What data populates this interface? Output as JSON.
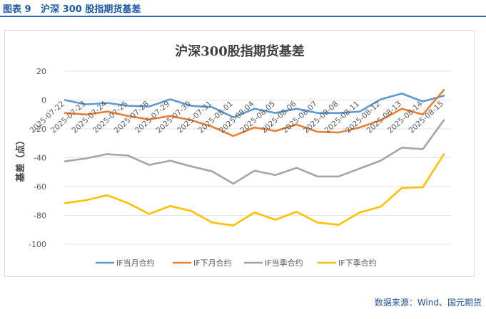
{
  "figure_label": "图表 9   沪深 300 股指期货基差",
  "source": "数据来源：Wind、国元期货",
  "chart_data": {
    "type": "line",
    "title": "沪深300股指期货基差",
    "ylabel": "基差（点）",
    "xlabel": "",
    "ylim": [
      -100,
      20
    ],
    "yticks": [
      20,
      0,
      -20,
      -40,
      -60,
      -80,
      -100
    ],
    "grid": true,
    "legend_position": "bottom",
    "x": [
      "2025-07-22",
      "2025-07-23",
      "2025-07-24",
      "2025-07-25",
      "2025-07-28",
      "2025-07-29",
      "2025-07-30",
      "2025-07-31",
      "2025-08-01",
      "2025-08-04",
      "2025-08-05",
      "2025-08-06",
      "2025-08-07",
      "2025-08-08",
      "2025-08-11",
      "2025-08-12",
      "2025-08-13",
      "2025-08-14",
      "2025-08-15"
    ],
    "series": [
      {
        "name": "IF当月合约",
        "color": "#5b9bd5",
        "values": [
          0,
          -3,
          -2,
          -4,
          -4.5,
          0.5,
          -4,
          -5,
          -12,
          -6,
          -9,
          -6,
          -9,
          -9,
          -8,
          0.5,
          4.5,
          -1,
          3
        ]
      },
      {
        "name": "IF下月合约",
        "color": "#ed7d31",
        "values": [
          -9,
          -10,
          -8,
          -11,
          -13.5,
          -11,
          -14,
          -18.5,
          -25,
          -19,
          -21.5,
          -17,
          -22,
          -22.5,
          -19,
          -14,
          -6,
          -10,
          7
        ]
      },
      {
        "name": "IF当季合约",
        "color": "#a5a5a5",
        "values": [
          -42.5,
          -40.5,
          -37.5,
          -38.5,
          -45,
          -42,
          -46,
          -49.5,
          -58,
          -49,
          -52,
          -47,
          -53,
          -53,
          -47.5,
          -42,
          -33,
          -34,
          -14
        ]
      },
      {
        "name": "IF下季合约",
        "color": "#ffc000",
        "values": [
          -71.5,
          -69.5,
          -66,
          -71.5,
          -79,
          -73.5,
          -77,
          -85,
          -87,
          -78,
          -83,
          -77.5,
          -85,
          -86.5,
          -78,
          -74,
          -61,
          -60.5,
          -37.5
        ]
      }
    ]
  }
}
